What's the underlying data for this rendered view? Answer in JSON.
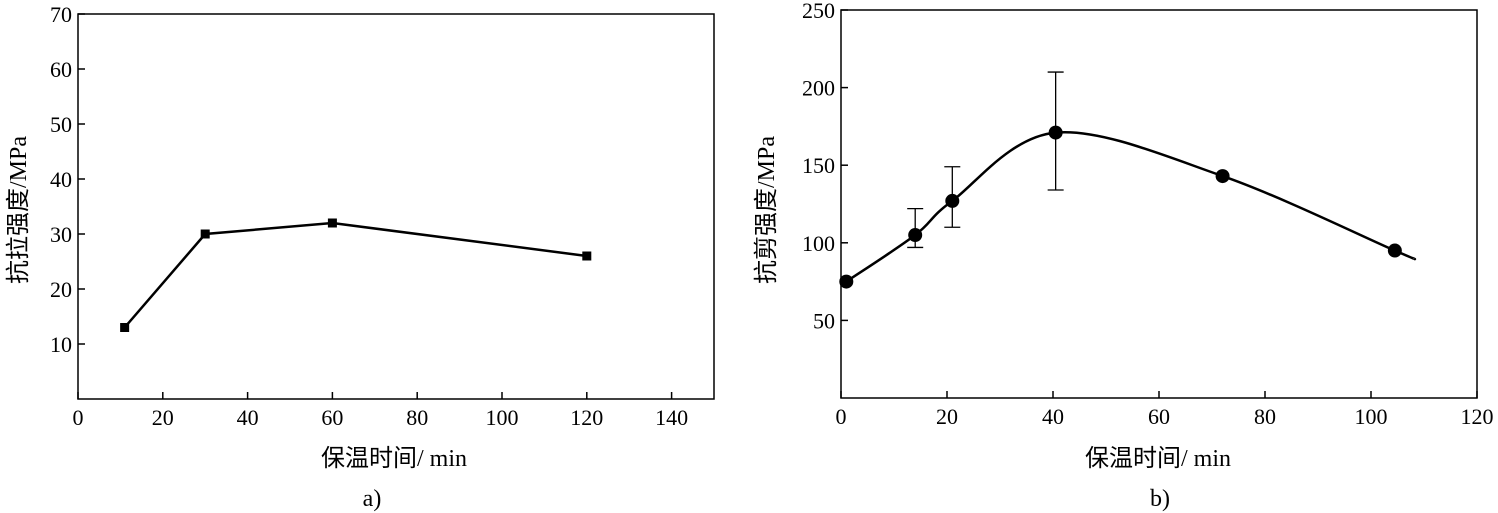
{
  "chart_data": [
    {
      "type": "line",
      "panel_label": "a)",
      "xlabel": "保温时间/ min",
      "ylabel": "抗拉强度/MPa",
      "xlim": [
        0,
        150
      ],
      "ylim": [
        0,
        70
      ],
      "xticks": [
        0,
        20,
        40,
        60,
        80,
        100,
        120,
        140
      ],
      "yticks": [
        10,
        20,
        30,
        40,
        50,
        60,
        70
      ],
      "marker": "square",
      "points": [
        {
          "x": 11,
          "y": 13
        },
        {
          "x": 30,
          "y": 30
        },
        {
          "x": 60,
          "y": 32
        },
        {
          "x": 120,
          "y": 26
        }
      ]
    },
    {
      "type": "line",
      "panel_label": "b)",
      "xlabel": "保温时间/ min",
      "ylabel": "抗剪强度/MPa",
      "xlim": [
        0,
        120
      ],
      "ylim": [
        0,
        250
      ],
      "xticks": [
        0,
        20,
        40,
        60,
        80,
        100,
        120
      ],
      "yticks": [
        50,
        100,
        150,
        200,
        250
      ],
      "marker": "circle",
      "smooth": true,
      "points": [
        {
          "x": 1,
          "y": 75
        },
        {
          "x": 14,
          "y": 105,
          "err_low": 97,
          "err_high": 122
        },
        {
          "x": 21,
          "y": 127,
          "err_low": 110,
          "err_high": 149
        },
        {
          "x": 40.5,
          "y": 171,
          "err_low": 134,
          "err_high": 210
        },
        {
          "x": 72,
          "y": 143
        },
        {
          "x": 104.5,
          "y": 95
        }
      ],
      "curve_end": {
        "x": 108,
        "y": 90
      }
    }
  ]
}
